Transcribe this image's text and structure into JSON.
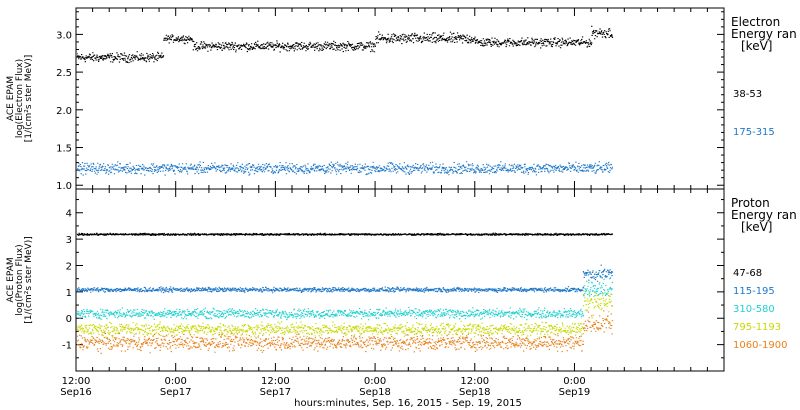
{
  "chart_data": [
    {
      "type": "scatter",
      "ylabel_lines": [
        "ACE EPAM",
        "log(Electron Flux)",
        "[1/(cm²s ster MeV)]"
      ],
      "ylim": [
        0.95,
        3.35
      ],
      "yticks": [
        "1.0",
        "1.5",
        "2.0",
        "2.5",
        "3.0"
      ],
      "yticks_values": [
        1.0,
        1.5,
        2.0,
        2.5,
        3.0
      ],
      "legend_title_lines": [
        "Electron",
        "Energy ran",
        "[keV]"
      ],
      "series": [
        {
          "name": "38-53",
          "color": "#000000",
          "segments": [
            {
              "t_start": 0,
              "t_end": 10.5,
              "mean": 2.7,
              "noise": 0.05
            },
            {
              "t_start": 10.5,
              "t_end": 14,
              "mean": 2.95,
              "noise": 0.04
            },
            {
              "t_start": 14,
              "t_end": 36,
              "mean": 2.85,
              "noise": 0.05
            },
            {
              "t_start": 36,
              "t_end": 48,
              "mean": 2.95,
              "noise": 0.06
            },
            {
              "t_start": 48,
              "t_end": 62,
              "mean": 2.9,
              "noise": 0.05
            },
            {
              "t_start": 62,
              "t_end": 64.5,
              "mean": 3.03,
              "noise": 0.06
            }
          ]
        },
        {
          "name": "175-315",
          "color": "#1f78c8",
          "segments": [
            {
              "t_start": 0,
              "t_end": 64.5,
              "mean": 1.23,
              "noise": 0.06
            }
          ]
        }
      ]
    },
    {
      "type": "scatter",
      "ylabel_lines": [
        "ACE EPAM",
        "log(Proton Flux)",
        "[1/(cm²s ster MeV)]"
      ],
      "ylim": [
        -2.0,
        4.9
      ],
      "yticks": [
        "-1",
        "0",
        "1",
        "2",
        "3",
        "4"
      ],
      "yticks_values": [
        -1,
        0,
        1,
        2,
        3,
        4
      ],
      "legend_title_lines": [
        "Proton",
        "Energy ran",
        "[keV]"
      ],
      "series": [
        {
          "name": "47-68",
          "color": "#000000",
          "segments": [
            {
              "t_start": 0,
              "t_end": 64.5,
              "mean": 3.2,
              "noise": 0.03
            }
          ]
        },
        {
          "name": "115-195",
          "color": "#1f78c8",
          "segments": [
            {
              "t_start": 0,
              "t_end": 61,
              "mean": 1.1,
              "noise": 0.07
            },
            {
              "t_start": 61,
              "t_end": 64.5,
              "mean": 1.7,
              "noise": 0.2
            }
          ]
        },
        {
          "name": "310-580",
          "color": "#20d0d0",
          "segments": [
            {
              "t_start": 0,
              "t_end": 61,
              "mean": 0.2,
              "noise": 0.15
            },
            {
              "t_start": 61,
              "t_end": 64.5,
              "mean": 1.1,
              "noise": 0.3
            }
          ]
        },
        {
          "name": "795-1193",
          "color": "#c8d800",
          "segments": [
            {
              "t_start": 0,
              "t_end": 61,
              "mean": -0.4,
              "noise": 0.2
            },
            {
              "t_start": 61,
              "t_end": 64.5,
              "mean": 0.6,
              "noise": 0.35
            }
          ]
        },
        {
          "name": "1060-1900",
          "color": "#e8801a",
          "segments": [
            {
              "t_start": 0,
              "t_end": 61,
              "mean": -0.9,
              "noise": 0.25
            },
            {
              "t_start": 61,
              "t_end": 64.5,
              "mean": -0.2,
              "noise": 0.35
            }
          ]
        }
      ]
    }
  ],
  "x_axis": {
    "unit": "hours since Sep 16 12:00",
    "xlim": [
      0,
      78
    ],
    "ticks": [
      {
        "t": 0,
        "time": "12:00",
        "date": "Sep16"
      },
      {
        "t": 12,
        "time": "0:00",
        "date": "Sep17"
      },
      {
        "t": 24,
        "time": "12:00",
        "date": "Sep17"
      },
      {
        "t": 36,
        "time": "0:00",
        "date": "Sep18"
      },
      {
        "t": 48,
        "time": "12:00",
        "date": "Sep18"
      },
      {
        "t": 60,
        "time": "0:00",
        "date": "Sep19"
      }
    ],
    "minor_step_hours": 2,
    "label": "hours:minutes, Sep. 16, 2015 - Sep. 19, 2015"
  }
}
